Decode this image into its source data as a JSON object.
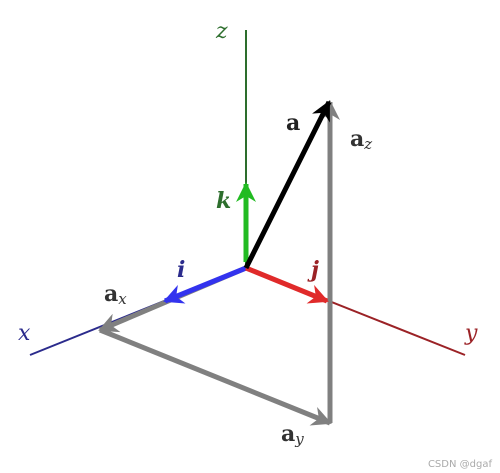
{
  "axes": {
    "x": {
      "label": "x",
      "color": "#2b2b8c"
    },
    "y": {
      "label": "y",
      "color": "#9b2226"
    },
    "z": {
      "label": "z",
      "color": "#2d6e2d"
    }
  },
  "unit_vectors": {
    "i": {
      "label": "i",
      "color": "#3333ee"
    },
    "j": {
      "label": "j",
      "color": "#e02a2a"
    },
    "k": {
      "label": "k",
      "color": "#22bb22"
    }
  },
  "vector": {
    "a": {
      "label": "a",
      "color": "#000000"
    },
    "ax": {
      "main": "a",
      "sub": "x",
      "color": "#808080"
    },
    "ay": {
      "main": "a",
      "sub": "y",
      "color": "#808080"
    },
    "az": {
      "main": "a",
      "sub": "z",
      "color": "#808080"
    }
  },
  "watermark": "CSDN @dgaf"
}
